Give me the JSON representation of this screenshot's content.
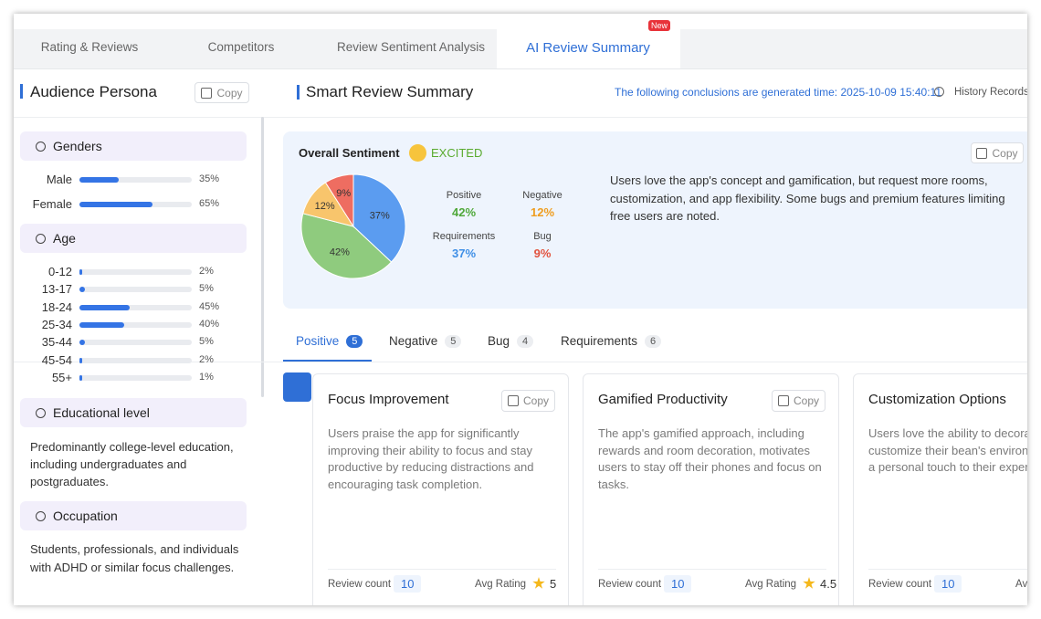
{
  "tabs": [
    "Rating & Reviews",
    "Competitors",
    "Review Sentiment Analysis",
    "AI Review Summary"
  ],
  "new_badge": "New",
  "persona": {
    "title": "Audience Persona",
    "copy": "Copy",
    "genders": {
      "title": "Genders",
      "items": [
        {
          "label": "Male",
          "value": 35,
          "value_label": "35%"
        },
        {
          "label": "Female",
          "value": 65,
          "value_label": "65%"
        }
      ]
    },
    "age": {
      "title": "Age",
      "items": [
        {
          "label": "0-12",
          "value": 2,
          "value_label": "2%"
        },
        {
          "label": "13-17",
          "value": 5,
          "value_label": "5%"
        },
        {
          "label": "18-24",
          "value": 45,
          "value_label": "45%"
        },
        {
          "label": "25-34",
          "value": 40,
          "value_label": "40%"
        },
        {
          "label": "35-44",
          "value": 5,
          "value_label": "5%"
        },
        {
          "label": "45-54",
          "value": 2,
          "value_label": "2%"
        },
        {
          "label": "55+",
          "value": 1,
          "value_label": "1%"
        }
      ]
    },
    "education": {
      "title": "Educational level",
      "text": "Predominantly college-level education, including undergraduates and postgraduates."
    },
    "occupation": {
      "title": "Occupation",
      "text": "Students, professionals, and individuals with ADHD or similar focus challenges."
    }
  },
  "summary": {
    "title": "Smart Review Summary",
    "generated": "The following conclusions are generated time: 2025-10-09 15:40:11",
    "history": "History Records",
    "sentiment": {
      "title": "Overall Sentiment",
      "mood": "EXCITED",
      "copy": "Copy",
      "description": "Users love the app's concept and gamification, but request more rooms, customization, and app flexibility. Some bugs and premium features limiting free users are noted.",
      "segments": [
        {
          "name": "Requirements",
          "value": 37,
          "value_label": "37%",
          "color": "#5b9cf0",
          "text_color": "#3f8fe6"
        },
        {
          "name": "Positive",
          "value": 42,
          "value_label": "42%",
          "color": "#8fcb7e",
          "text_color": "#4fa83a"
        },
        {
          "name": "Negative",
          "value": 12,
          "value_label": "12%",
          "color": "#f8c56c",
          "text_color": "#ef9d1f"
        },
        {
          "name": "Bug",
          "value": 9,
          "value_label": "9%",
          "color": "#ee6d61",
          "text_color": "#e2533f"
        }
      ]
    },
    "filters": [
      {
        "label": "Positive",
        "count": 5
      },
      {
        "label": "Negative",
        "count": 5
      },
      {
        "label": "Bug",
        "count": 4
      },
      {
        "label": "Requirements",
        "count": 6
      }
    ],
    "cards": [
      {
        "title": "Focus Improvement",
        "copy": "Copy",
        "text": "Users praise the app for significantly improving their ability to focus and stay productive by reducing distractions and encouraging task completion.",
        "review_count_label": "Review count",
        "review_count": 10,
        "avg_rating_label": "Avg Rating",
        "avg_rating": 5
      },
      {
        "title": "Gamified Productivity",
        "copy": "Copy",
        "text": "The app's gamified approach, including rewards and room decoration, motivates users to stay off their phones and focus on tasks.",
        "review_count_label": "Review count",
        "review_count": 10,
        "avg_rating_label": "Avg Rating",
        "avg_rating": 4.5
      },
      {
        "title": "Customization Options",
        "text": "Users love the ability to decorate and customize their bean's environment, adding a personal touch to their experience.",
        "review_count_label": "Review count",
        "review_count": 10,
        "avg_rating_label": "Avg Rating"
      }
    ]
  }
}
